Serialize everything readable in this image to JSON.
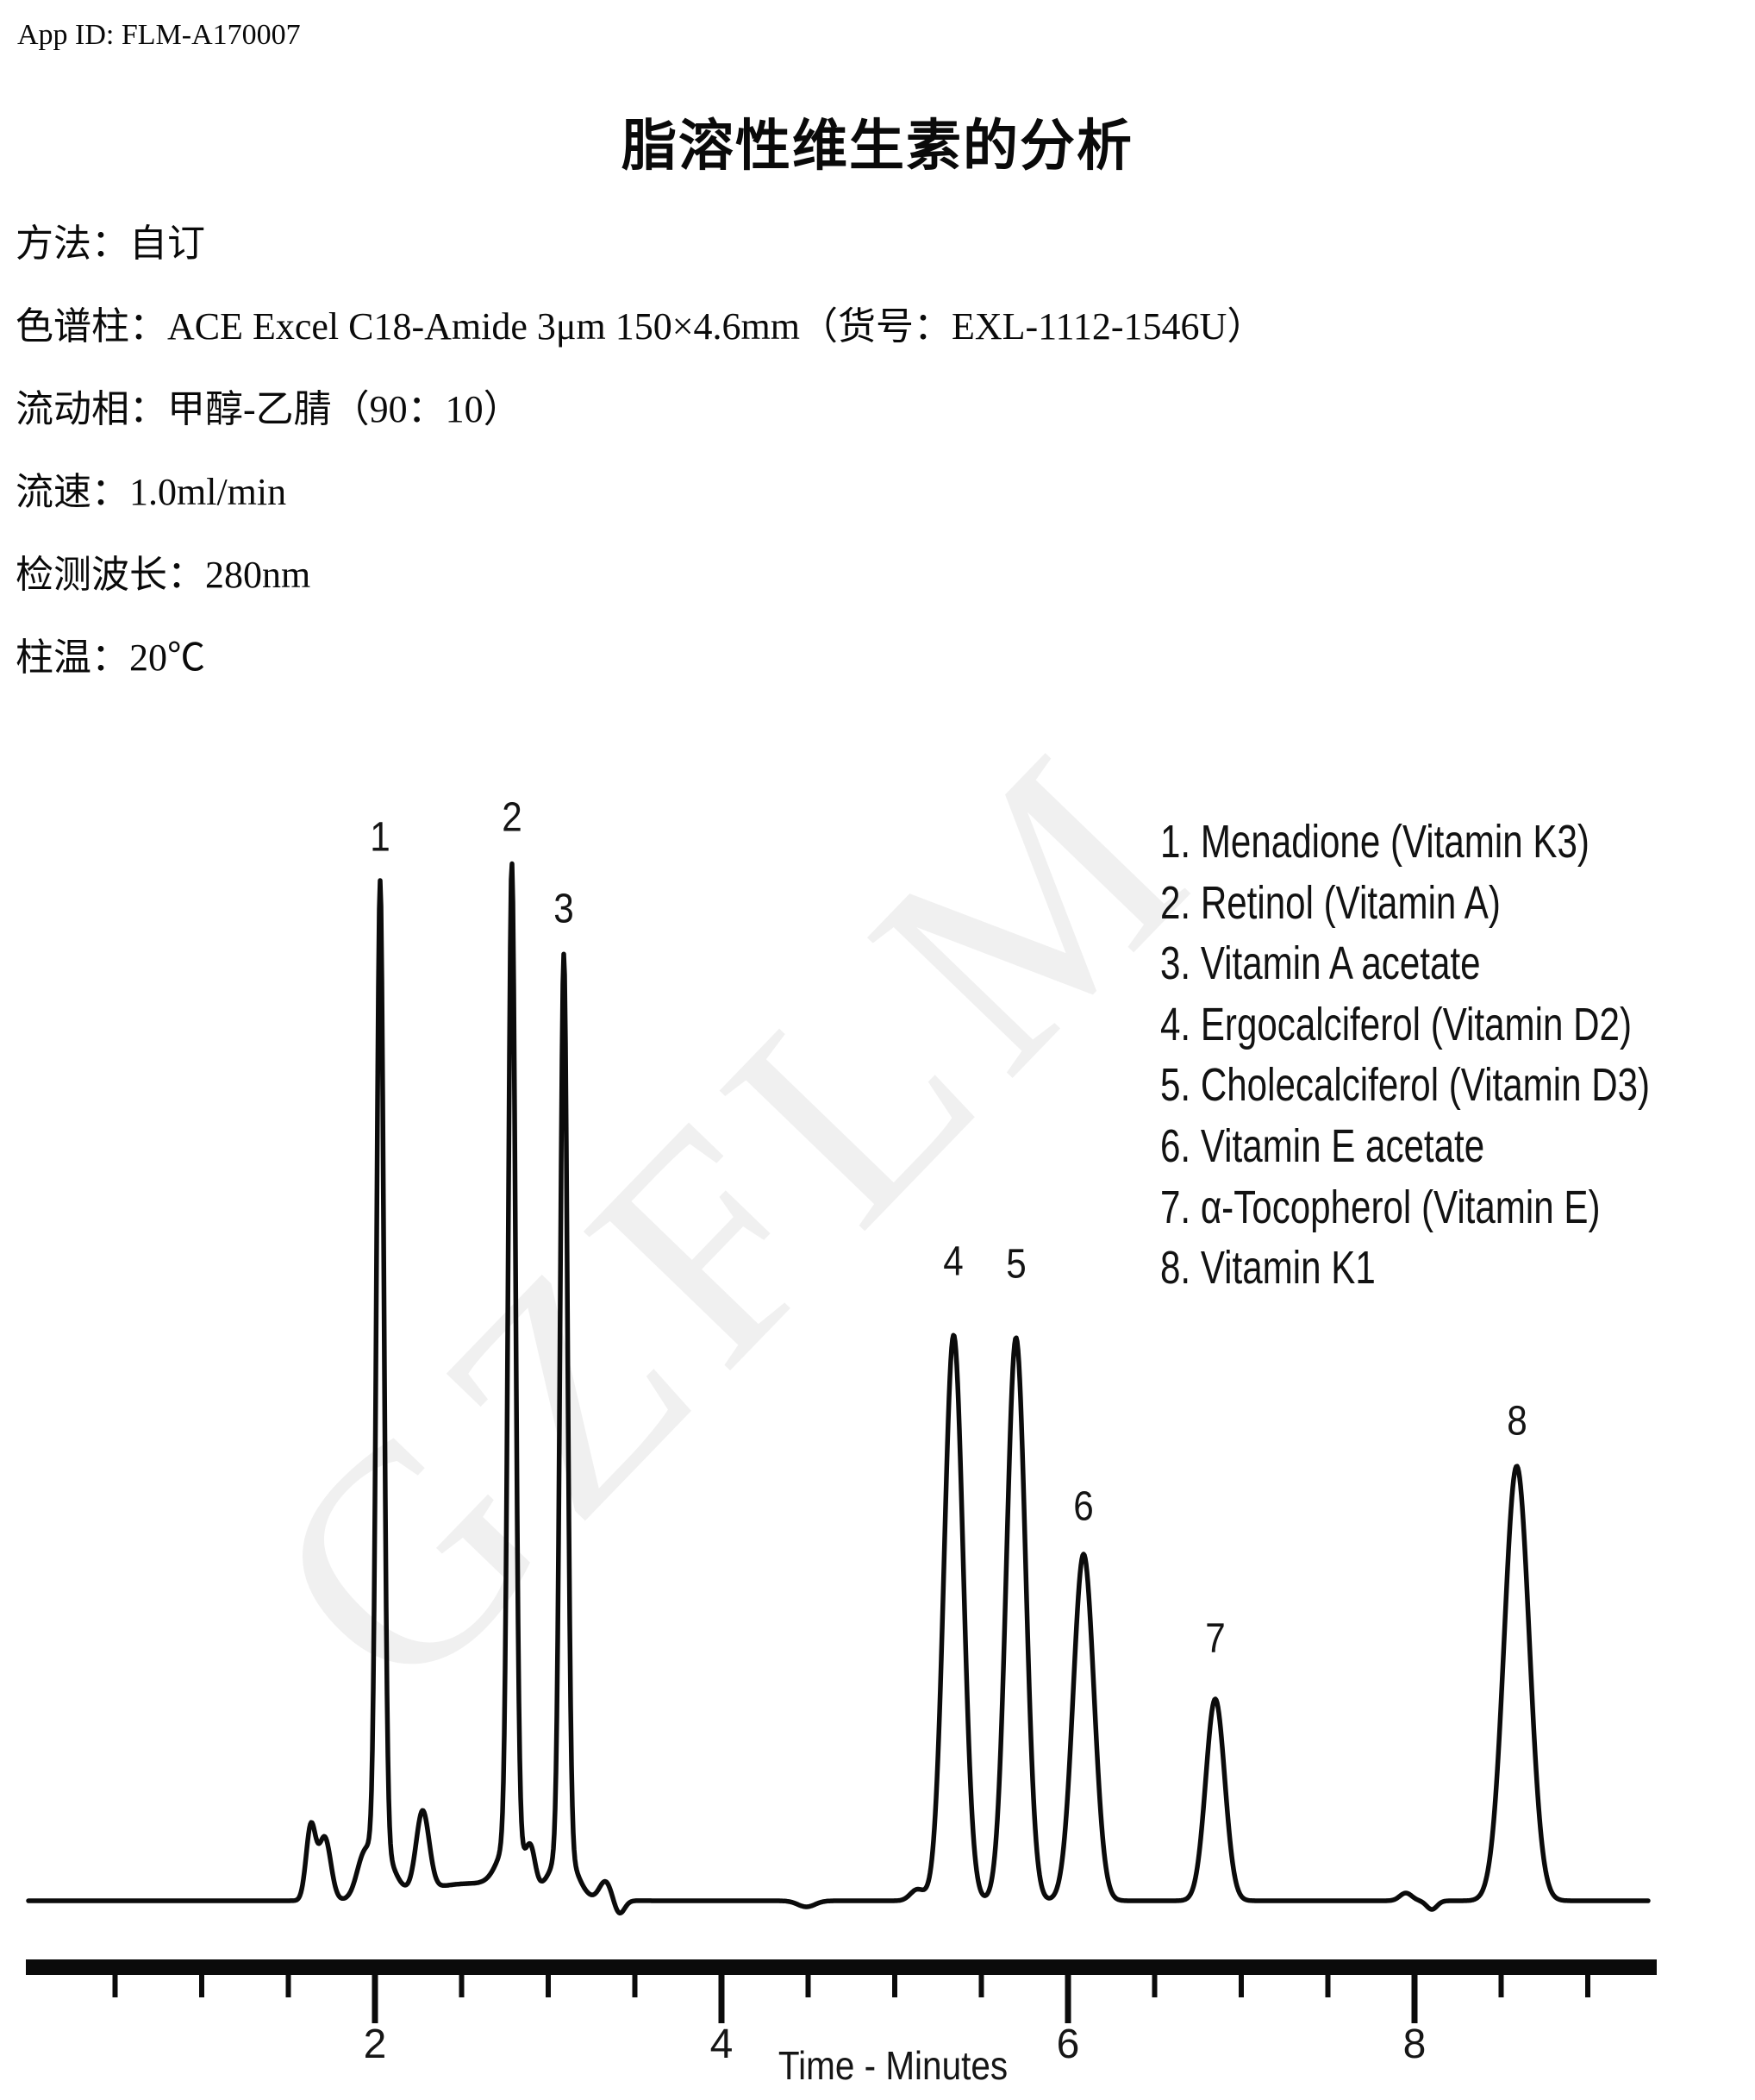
{
  "header": {
    "app_id": "App ID: FLM-A170007",
    "title": "脂溶性维生素的分析"
  },
  "method_info": [
    "方法：自订",
    "色谱柱：ACE Excel C18-Amide 3μm 150×4.6mm（货号：EXL-1112-1546U）",
    "流动相：甲醇-乙腈（90：10）",
    "流速：1.0ml/min",
    "检测波长：280nm",
    "柱温：20℃"
  ],
  "watermark_text": "GZFLM",
  "chart_data": {
    "type": "line",
    "title": "",
    "xlabel": "Time - Minutes",
    "ylabel": "",
    "x_range_minutes": [
      0,
      9.5
    ],
    "x_major_ticks": [
      2,
      4,
      6,
      8
    ],
    "x_minor_tick_step_minutes": 0.5,
    "grid": false,
    "legend_position": "upper-right",
    "trace_color": "#0b0b0b",
    "peaks": [
      {
        "number": 1,
        "name": "Menadione (Vitamin K3)",
        "rt_minutes": 2.03,
        "apex_height": 1183
      },
      {
        "number": 2,
        "name": "Retinol (Vitamin A)",
        "rt_minutes": 2.79,
        "apex_height": 1204
      },
      {
        "number": 3,
        "name": "Vitamin A acetate",
        "rt_minutes": 3.09,
        "apex_height": 1098
      },
      {
        "number": 4,
        "name": "Ergocalciferol (Vitamin D2)",
        "rt_minutes": 5.34,
        "apex_height": 656
      },
      {
        "number": 5,
        "name": "Cholecalciferol (Vitamin D3)",
        "rt_minutes": 5.7,
        "apex_height": 653
      },
      {
        "number": 6,
        "name": "Vitamin E acetate",
        "rt_minutes": 6.09,
        "apex_height": 402
      },
      {
        "number": 7,
        "name": "α-Tocopherol (Vitamin E)",
        "rt_minutes": 6.85,
        "apex_height": 234
      },
      {
        "number": 8,
        "name": "Vitamin K1",
        "rt_minutes": 8.59,
        "apex_height": 504
      }
    ],
    "baseline_features": [
      {
        "t": 1.63,
        "h": 85,
        "s": 5.5
      },
      {
        "t": 1.71,
        "h": 73,
        "s": 7
      },
      {
        "t": 1.93,
        "h": 32,
        "s": 8
      },
      {
        "t": 2.03,
        "h": 60,
        "s": 14
      },
      {
        "t": 2.275,
        "h": 92,
        "s": 7.5
      },
      {
        "t": 2.56,
        "h": 20,
        "s": 60
      },
      {
        "t": 2.79,
        "h": 60,
        "s": 14
      },
      {
        "t": 2.9,
        "h": 36,
        "s": 5
      },
      {
        "t": 3.09,
        "h": 55,
        "s": 14
      },
      {
        "t": 3.33,
        "h": 22,
        "s": 7
      },
      {
        "t": 3.41,
        "h": -16,
        "s": 6
      },
      {
        "t": 4.49,
        "h": -7,
        "s": 10
      },
      {
        "t": 5.13,
        "h": 13,
        "s": 8
      },
      {
        "t": 7.95,
        "h": 9,
        "s": 7
      },
      {
        "t": 8.1,
        "h": -10,
        "s": 6
      }
    ],
    "legend_lines": [
      "1. Menadione (Vitamin K3)",
      "2. Retinol (Vitamin A)",
      "3. Vitamin A acetate",
      "4. Ergocalciferol (Vitamin D2)",
      "5. Cholecalciferol (Vitamin D3)",
      "6. Vitamin E acetate",
      "7. α-Tocopherol (Vitamin E)",
      "8. Vitamin K1"
    ]
  }
}
